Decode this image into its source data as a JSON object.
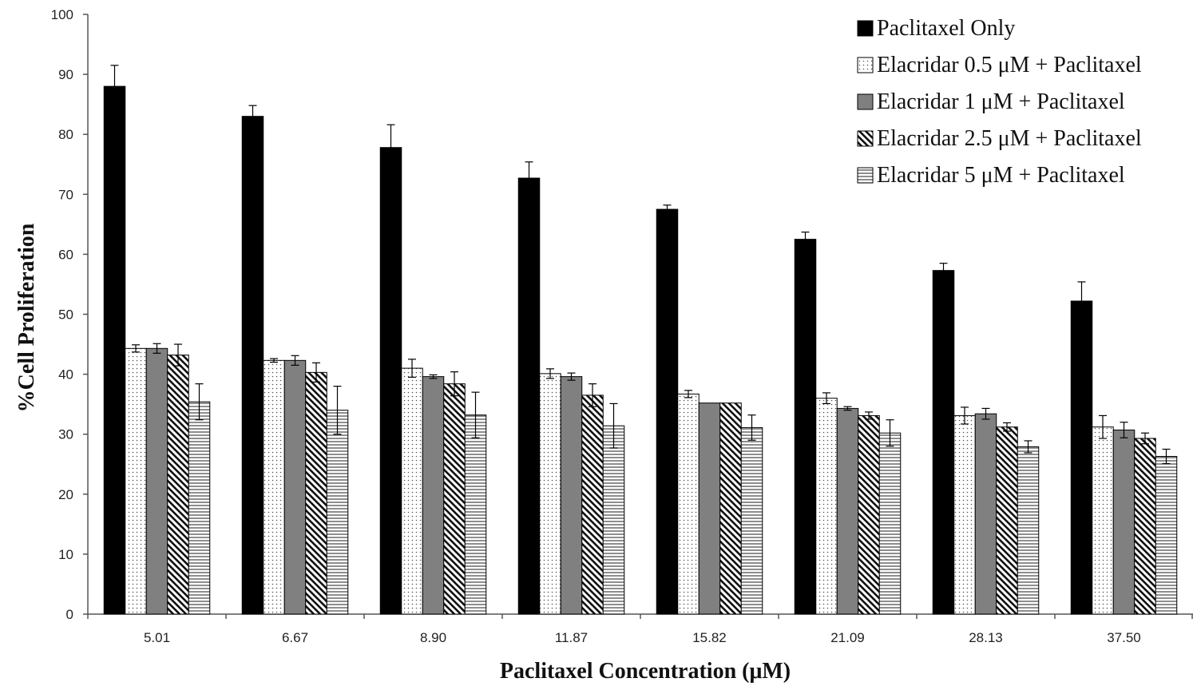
{
  "chart_data": {
    "type": "bar",
    "xlabel": "Paclitaxel Concentration (μM)",
    "ylabel": "%Cell Proliferation",
    "ylim": [
      0,
      100
    ],
    "yticks": [
      0,
      10,
      20,
      30,
      40,
      50,
      60,
      70,
      80,
      90,
      100
    ],
    "grid": false,
    "legend_position": "top-right",
    "categories": [
      "5.01",
      "6.67",
      "8.90",
      "11.87",
      "15.82",
      "21.09",
      "28.13",
      "37.50"
    ],
    "series": [
      {
        "name": "Paclitaxel Only",
        "pattern": "solid-black",
        "values": [
          88,
          83,
          77.8,
          72.7,
          67.5,
          62.5,
          57.3,
          52.2
        ],
        "errors": [
          3.5,
          1.8,
          3.8,
          2.7,
          0.7,
          1.2,
          1.2,
          3.2
        ]
      },
      {
        "name": "Elacridar 0.5 μM + Paclitaxel",
        "pattern": "dots",
        "values": [
          44.3,
          42.3,
          41,
          40.1,
          36.7,
          36,
          33.1,
          31.2
        ],
        "errors": [
          0.6,
          0.3,
          1.5,
          0.8,
          0.6,
          0.9,
          1.4,
          1.9
        ]
      },
      {
        "name": "Elacridar 1 μM + Paclitaxel",
        "pattern": "solid-gray",
        "values": [
          44.3,
          42.3,
          39.6,
          39.6,
          35.2,
          34.3,
          33.4,
          30.7
        ],
        "errors": [
          0.8,
          0.8,
          0.3,
          0.6,
          0,
          0.3,
          0.9,
          1.3
        ]
      },
      {
        "name": "Elacridar 2.5 μM + Paclitaxel",
        "pattern": "diagonal",
        "values": [
          43.2,
          40.3,
          38.4,
          36.5,
          35.2,
          33.1,
          31.2,
          29.3
        ],
        "errors": [
          1.8,
          1.6,
          2,
          1.9,
          0,
          0.6,
          0.7,
          0.9
        ]
      },
      {
        "name": "Elacridar 5 μM + Paclitaxel",
        "pattern": "horizontal",
        "values": [
          35.4,
          34,
          33.2,
          31.4,
          31.1,
          30.2,
          27.9,
          26.3
        ],
        "errors": [
          3,
          4,
          3.8,
          3.7,
          2.1,
          2.2,
          1,
          1.2
        ]
      }
    ]
  }
}
